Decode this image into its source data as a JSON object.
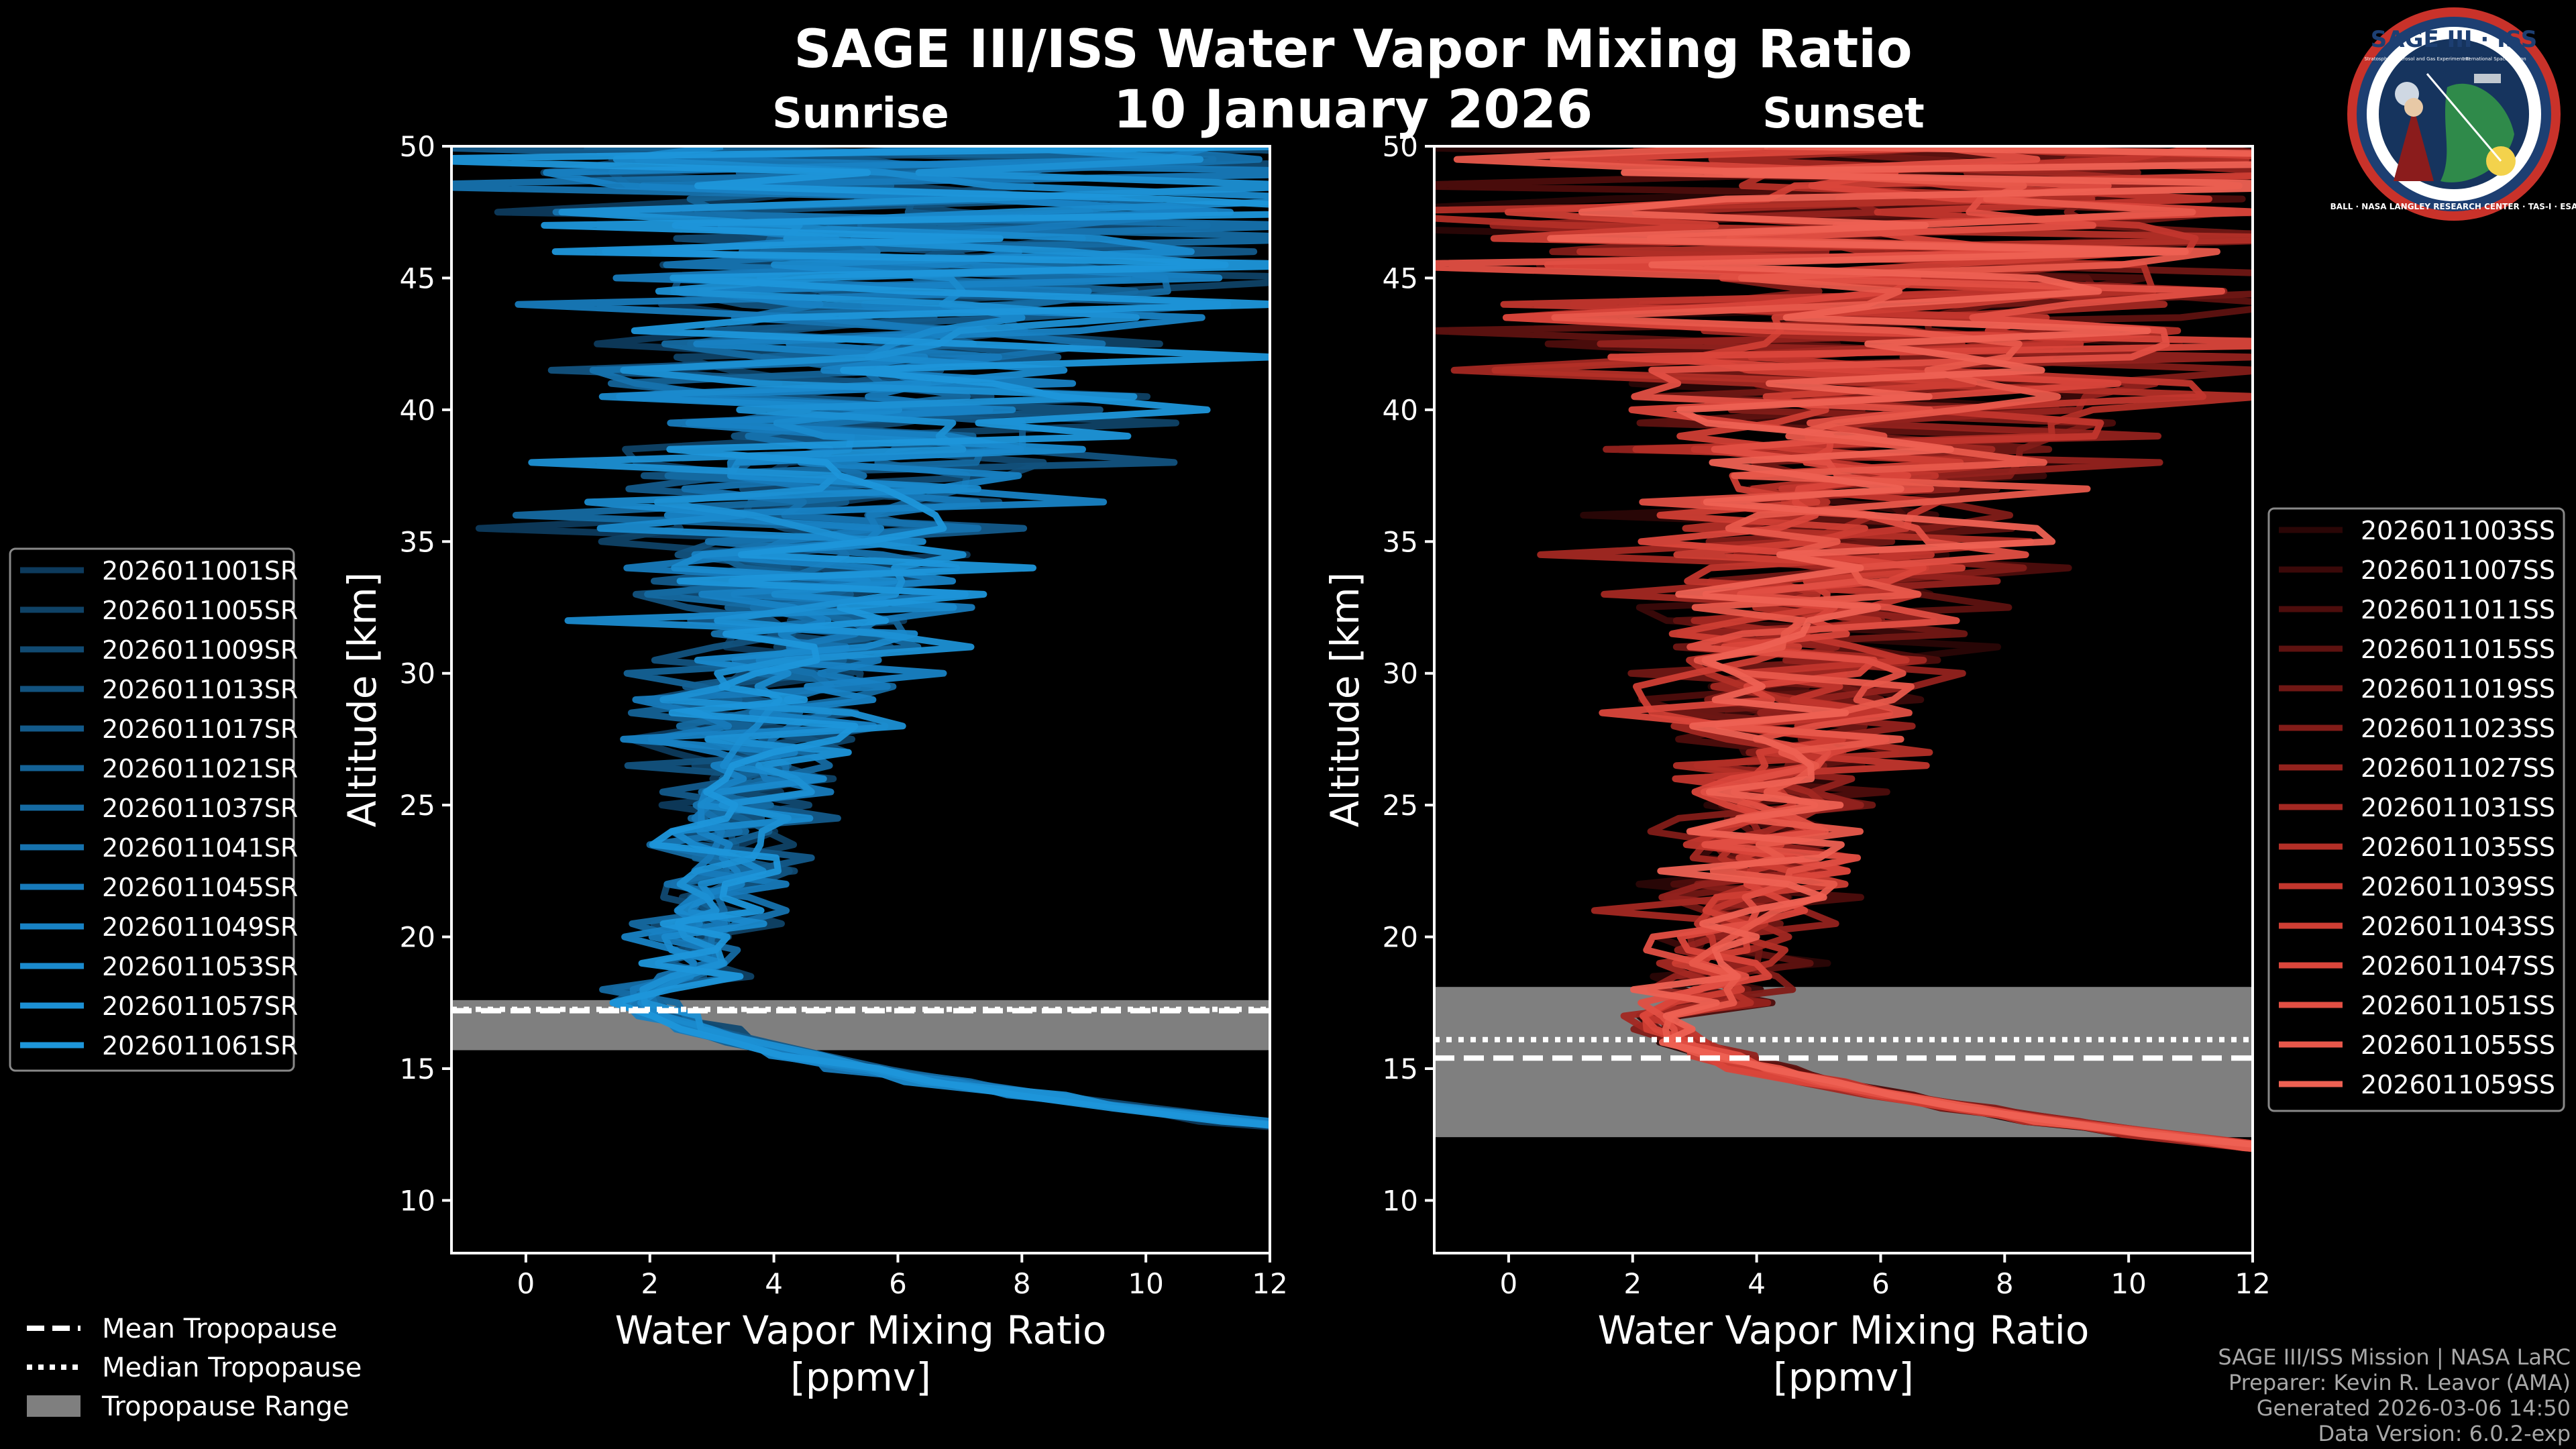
{
  "header": {
    "title": "SAGE III/ISS Water Vapor Mixing Ratio",
    "date": "10 January 2026"
  },
  "chart_data": [
    {
      "type": "line",
      "panel": "sunrise",
      "subtitle": "Sunrise",
      "xlabel": "Water Vapor Mixing Ratio",
      "xlabel_units": "[ppmv]",
      "ylabel": "Altitude [km]",
      "xlim": [
        -1.2,
        12
      ],
      "ylim": [
        8,
        50
      ],
      "xticks": [
        0,
        2,
        4,
        6,
        8,
        10,
        12
      ],
      "yticks": [
        10,
        15,
        20,
        25,
        30,
        35,
        40,
        45,
        50
      ],
      "tropopause": {
        "mean": 17.2,
        "median": 17.25,
        "min": 15.7,
        "max": 17.6
      },
      "series_note": "13 sunrise water vapor profiles, noisy; narrowing from wide spread aloft to ~1.5-2 ppmv near 17 km then rising to >12 ppmv below",
      "series": [
        {
          "name": "2026011001SR",
          "color": "#0d3a5c"
        },
        {
          "name": "2026011005SR",
          "color": "#0f4266"
        },
        {
          "name": "2026011009SR",
          "color": "#114a72"
        },
        {
          "name": "2026011013SR",
          "color": "#12527e"
        },
        {
          "name": "2026011017SR",
          "color": "#135a8a"
        },
        {
          "name": "2026011021SR",
          "color": "#146296"
        },
        {
          "name": "2026011037SR",
          "color": "#156aa2"
        },
        {
          "name": "2026011041SR",
          "color": "#1672ae"
        },
        {
          "name": "2026011045SR",
          "color": "#177aba"
        },
        {
          "name": "2026011049SR",
          "color": "#1882c4"
        },
        {
          "name": "2026011053SR",
          "color": "#1a8acd"
        },
        {
          "name": "2026011057SR",
          "color": "#1c90d4"
        },
        {
          "name": "2026011061SR",
          "color": "#1e96da"
        }
      ]
    },
    {
      "type": "line",
      "panel": "sunset",
      "subtitle": "Sunset",
      "xlabel": "Water Vapor Mixing Ratio",
      "xlabel_units": "[ppmv]",
      "ylabel": "Altitude [km]",
      "xlim": [
        -1.2,
        12
      ],
      "ylim": [
        8,
        50
      ],
      "xticks": [
        0,
        2,
        4,
        6,
        8,
        10,
        12
      ],
      "yticks": [
        10,
        15,
        20,
        25,
        30,
        35,
        40,
        45,
        50
      ],
      "tropopause": {
        "mean": 15.4,
        "median": 16.1,
        "min": 12.4,
        "max": 18.1
      },
      "series_note": "15 sunset water vapor profiles, noisy; minimum ~1.5-2.5 ppmv near 16-17 km then rising to >12 ppmv below",
      "series": [
        {
          "name": "2026011003SS",
          "color": "#2a0606"
        },
        {
          "name": "2026011007SS",
          "color": "#3b0909"
        },
        {
          "name": "2026011011SS",
          "color": "#4d0d0c"
        },
        {
          "name": "2026011015SS",
          "color": "#5e1210"
        },
        {
          "name": "2026011019SS",
          "color": "#701714"
        },
        {
          "name": "2026011023SS",
          "color": "#821c18"
        },
        {
          "name": "2026011027SS",
          "color": "#93221d"
        },
        {
          "name": "2026011031SS",
          "color": "#a32822"
        },
        {
          "name": "2026011035SS",
          "color": "#b32f27"
        },
        {
          "name": "2026011039SS",
          "color": "#c2362d"
        },
        {
          "name": "2026011043SS",
          "color": "#cf3e34"
        },
        {
          "name": "2026011047SS",
          "color": "#da463b"
        },
        {
          "name": "2026011051SS",
          "color": "#e24f43"
        },
        {
          "name": "2026011055SS",
          "color": "#e8584b"
        },
        {
          "name": "2026011059SS",
          "color": "#ee6153"
        }
      ]
    }
  ],
  "tropopause_legend": [
    {
      "label": "Mean Tropopause",
      "style": "dashed"
    },
    {
      "label": "Median Tropopause",
      "style": "dotted"
    },
    {
      "label": "Tropopause Range",
      "style": "fill"
    }
  ],
  "logo": {
    "title": "SAGE III · ISS",
    "subtitle_left": "Stratospheric Aerosol and Gas Experiment III",
    "subtitle_right": "International Space Station",
    "ring": "BALL · NASA LANGLEY RESEARCH CENTER · TAS-I · ESA"
  },
  "footer": {
    "line1": "SAGE III/ISS Mission | NASA LaRC",
    "line2": "Preparer: Kevin R. Leavor (AMA)",
    "line3": "Generated 2026-03-06 14:50",
    "line4": "Data Version: 6.0.2-exp"
  },
  "colors": {
    "sunrise_accent": "#1e96da",
    "sunset_accent": "#ee6153",
    "tropopause_fill": "#7f7f7f",
    "background": "#000000"
  }
}
